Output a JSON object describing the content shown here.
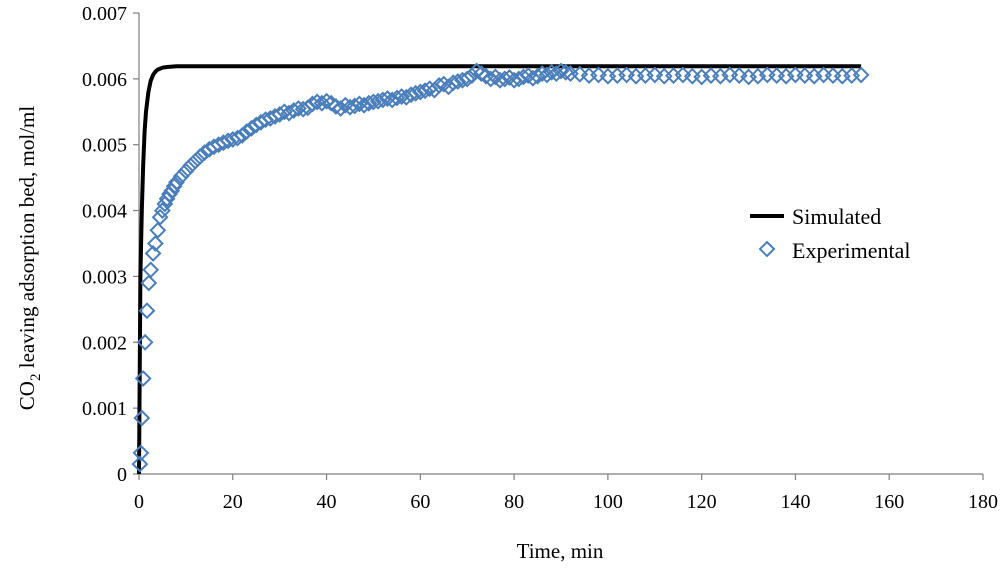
{
  "chart_data": {
    "type": "scatter",
    "title": "",
    "xlabel": "Time,  min",
    "ylabel": {
      "prefix": "CO",
      "subscript": "2",
      "suffix": " leaving adsorption bed, mol/ml"
    },
    "xlim": [
      0,
      180
    ],
    "ylim": [
      0,
      0.007
    ],
    "x_ticks": [
      0,
      20,
      40,
      60,
      80,
      100,
      120,
      140,
      160,
      180
    ],
    "x_tick_labels": [
      "0",
      "20",
      "40",
      "60",
      "80",
      "100",
      "120",
      "140",
      "160",
      "180"
    ],
    "y_ticks": [
      0,
      0.001,
      0.002,
      0.003,
      0.004,
      0.005,
      0.006,
      0.007
    ],
    "y_tick_labels": [
      "0",
      "0.001",
      "0.002",
      "0.003",
      "0.004",
      "0.005",
      "0.006",
      "0.007"
    ],
    "grid": false,
    "legend_position": "right",
    "series": [
      {
        "name": "Simulated",
        "kind": "line",
        "color": "#000000",
        "x": [
          0,
          0.3,
          0.6,
          0.9,
          1.2,
          1.5,
          2,
          2.5,
          3,
          3.5,
          4,
          5,
          6,
          8,
          10,
          20,
          40,
          60,
          80,
          100,
          120,
          140,
          154
        ],
        "y": [
          0,
          0.003,
          0.004,
          0.0047,
          0.0052,
          0.0055,
          0.0058,
          0.00597,
          0.00606,
          0.00611,
          0.00614,
          0.00617,
          0.00618,
          0.00619,
          0.00619,
          0.00619,
          0.00619,
          0.00619,
          0.00619,
          0.00619,
          0.00619,
          0.00619,
          0.00619
        ]
      },
      {
        "name": "Experimental",
        "kind": "markers",
        "marker": "diamond-open",
        "color": "#4a7ebb",
        "x": [
          0.2,
          0.4,
          0.6,
          0.9,
          1.3,
          1.7,
          2.1,
          2.5,
          3.0,
          3.5,
          4.0,
          4.5,
          5.0,
          5.5,
          6.0,
          6.5,
          7.0,
          7.5,
          8,
          9,
          10,
          11,
          12,
          13,
          14,
          15,
          16,
          17,
          18,
          19,
          20,
          21,
          22,
          23,
          24,
          25,
          26,
          27,
          28,
          29,
          30,
          31,
          32,
          33,
          34,
          35,
          36,
          37,
          38,
          39,
          40,
          41,
          42,
          43,
          44,
          45,
          46,
          47,
          48,
          49,
          50,
          51,
          52,
          53,
          54,
          55,
          56,
          57,
          58,
          59,
          60,
          61,
          62,
          63,
          64,
          65,
          66,
          67,
          68,
          69,
          70,
          71,
          72,
          73,
          74,
          75,
          76,
          77,
          78,
          79,
          80,
          81,
          82,
          83,
          84,
          85,
          86,
          87,
          88,
          89,
          90,
          91,
          92,
          94,
          96,
          98,
          100,
          102,
          104,
          106,
          108,
          110,
          112,
          114,
          116,
          118,
          120,
          122,
          124,
          126,
          128,
          130,
          132,
          134,
          136,
          138,
          140,
          142,
          144,
          146,
          148,
          150,
          152,
          154
        ],
        "y": [
          0.00015,
          0.00032,
          0.00085,
          0.00145,
          0.002,
          0.00248,
          0.0029,
          0.0031,
          0.00335,
          0.0035,
          0.0037,
          0.0039,
          0.004,
          0.0041,
          0.00418,
          0.00425,
          0.0043,
          0.00437,
          0.00443,
          0.00452,
          0.0046,
          0.00468,
          0.00475,
          0.00482,
          0.00488,
          0.00493,
          0.00497,
          0.005,
          0.00503,
          0.00506,
          0.00508,
          0.0051,
          0.00514,
          0.0052,
          0.00525,
          0.0053,
          0.00534,
          0.00538,
          0.0054,
          0.00543,
          0.00546,
          0.0055,
          0.00548,
          0.00552,
          0.00555,
          0.00554,
          0.00556,
          0.00562,
          0.00565,
          0.00563,
          0.00566,
          0.00563,
          0.00558,
          0.00555,
          0.0056,
          0.00557,
          0.00559,
          0.00562,
          0.0056,
          0.00563,
          0.00565,
          0.00566,
          0.00568,
          0.0057,
          0.00568,
          0.00571,
          0.00573,
          0.00572,
          0.00576,
          0.00578,
          0.0058,
          0.00582,
          0.00585,
          0.00583,
          0.0059,
          0.00592,
          0.00588,
          0.00594,
          0.00596,
          0.00598,
          0.006,
          0.00605,
          0.00612,
          0.00608,
          0.00604,
          0.006,
          0.00603,
          0.00598,
          0.006,
          0.00602,
          0.00598,
          0.006,
          0.00603,
          0.00605,
          0.00601,
          0.00604,
          0.00608,
          0.00606,
          0.0061,
          0.00608,
          0.00612,
          0.0061,
          0.00608,
          0.00607,
          0.00605,
          0.00606,
          0.00604,
          0.00605,
          0.00606,
          0.00604,
          0.00605,
          0.00606,
          0.00604,
          0.00605,
          0.00606,
          0.00604,
          0.00603,
          0.00605,
          0.00604,
          0.00606,
          0.00605,
          0.00603,
          0.00604,
          0.00606,
          0.00605,
          0.00604,
          0.00606,
          0.00605,
          0.00604,
          0.00606,
          0.00605,
          0.00604,
          0.00605,
          0.00606
        ]
      }
    ]
  }
}
